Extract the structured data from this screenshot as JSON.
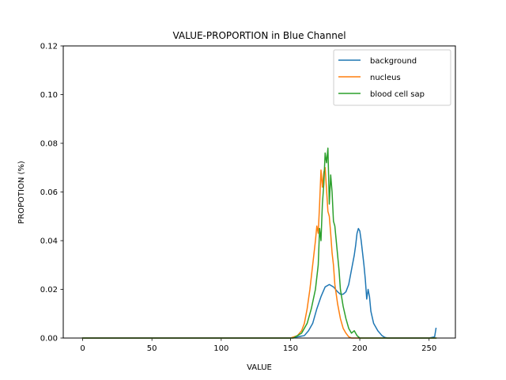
{
  "chart_data": {
    "type": "line",
    "title": "VALUE-PROPORTION in Blue Channel",
    "xlabel": "VALUE",
    "ylabel": "PROPOTION (%)",
    "xlim": [
      -14,
      269
    ],
    "ylim": [
      0,
      0.12
    ],
    "xticks": [
      0,
      50,
      100,
      150,
      200,
      250
    ],
    "yticks": [
      0.0,
      0.02,
      0.04,
      0.06,
      0.08,
      0.1,
      0.12
    ],
    "xtick_labels": [
      "0",
      "50",
      "100",
      "150",
      "200",
      "250"
    ],
    "ytick_labels": [
      "0.00",
      "0.02",
      "0.04",
      "0.06",
      "0.08",
      "0.10",
      "0.12"
    ],
    "grid": false,
    "legend_position": "top-right",
    "series": [
      {
        "name": "background",
        "color": "#1f77b4",
        "x": [
          0,
          150,
          160,
          163,
          166,
          169,
          172,
          175,
          178,
          181,
          184,
          186,
          188,
          190,
          192,
          194,
          196,
          197,
          198,
          199,
          200,
          201,
          202,
          203,
          204,
          205,
          206,
          207,
          208,
          210,
          213,
          216,
          218,
          220,
          250,
          254,
          255
        ],
        "y": [
          0,
          0,
          0.001,
          0.003,
          0.006,
          0.012,
          0.017,
          0.021,
          0.022,
          0.021,
          0.019,
          0.018,
          0.018,
          0.019,
          0.022,
          0.028,
          0.034,
          0.038,
          0.043,
          0.045,
          0.044,
          0.04,
          0.035,
          0.03,
          0.024,
          0.016,
          0.02,
          0.017,
          0.011,
          0.006,
          0.003,
          0.001,
          0.0003,
          0,
          0,
          0.0005,
          0.004
        ]
      },
      {
        "name": "nucleus",
        "color": "#ff7f0e",
        "x": [
          0,
          150,
          155,
          158,
          160,
          162,
          164,
          166,
          168,
          169,
          170,
          171,
          172,
          173,
          174,
          175,
          176,
          177,
          178,
          179,
          180,
          181,
          182,
          184,
          186,
          188,
          190,
          192,
          194,
          255
        ],
        "y": [
          0,
          0,
          0.001,
          0.003,
          0.006,
          0.012,
          0.02,
          0.03,
          0.04,
          0.046,
          0.043,
          0.055,
          0.069,
          0.062,
          0.068,
          0.07,
          0.061,
          0.052,
          0.05,
          0.043,
          0.035,
          0.03,
          0.022,
          0.014,
          0.008,
          0.004,
          0.002,
          0.0005,
          0,
          0
        ]
      },
      {
        "name": "blood cell sap",
        "color": "#2ca02c",
        "x": [
          0,
          152,
          158,
          162,
          165,
          168,
          170,
          171,
          172,
          173,
          174,
          175,
          176,
          177,
          178,
          179,
          180,
          181,
          182,
          183,
          184,
          185,
          186,
          188,
          190,
          192,
          194,
          196,
          198,
          200,
          255
        ],
        "y": [
          0,
          0,
          0.002,
          0.006,
          0.012,
          0.02,
          0.03,
          0.045,
          0.04,
          0.055,
          0.063,
          0.076,
          0.072,
          0.078,
          0.055,
          0.067,
          0.06,
          0.048,
          0.046,
          0.04,
          0.034,
          0.028,
          0.02,
          0.013,
          0.008,
          0.004,
          0.002,
          0.003,
          0.001,
          0,
          0
        ]
      }
    ]
  }
}
